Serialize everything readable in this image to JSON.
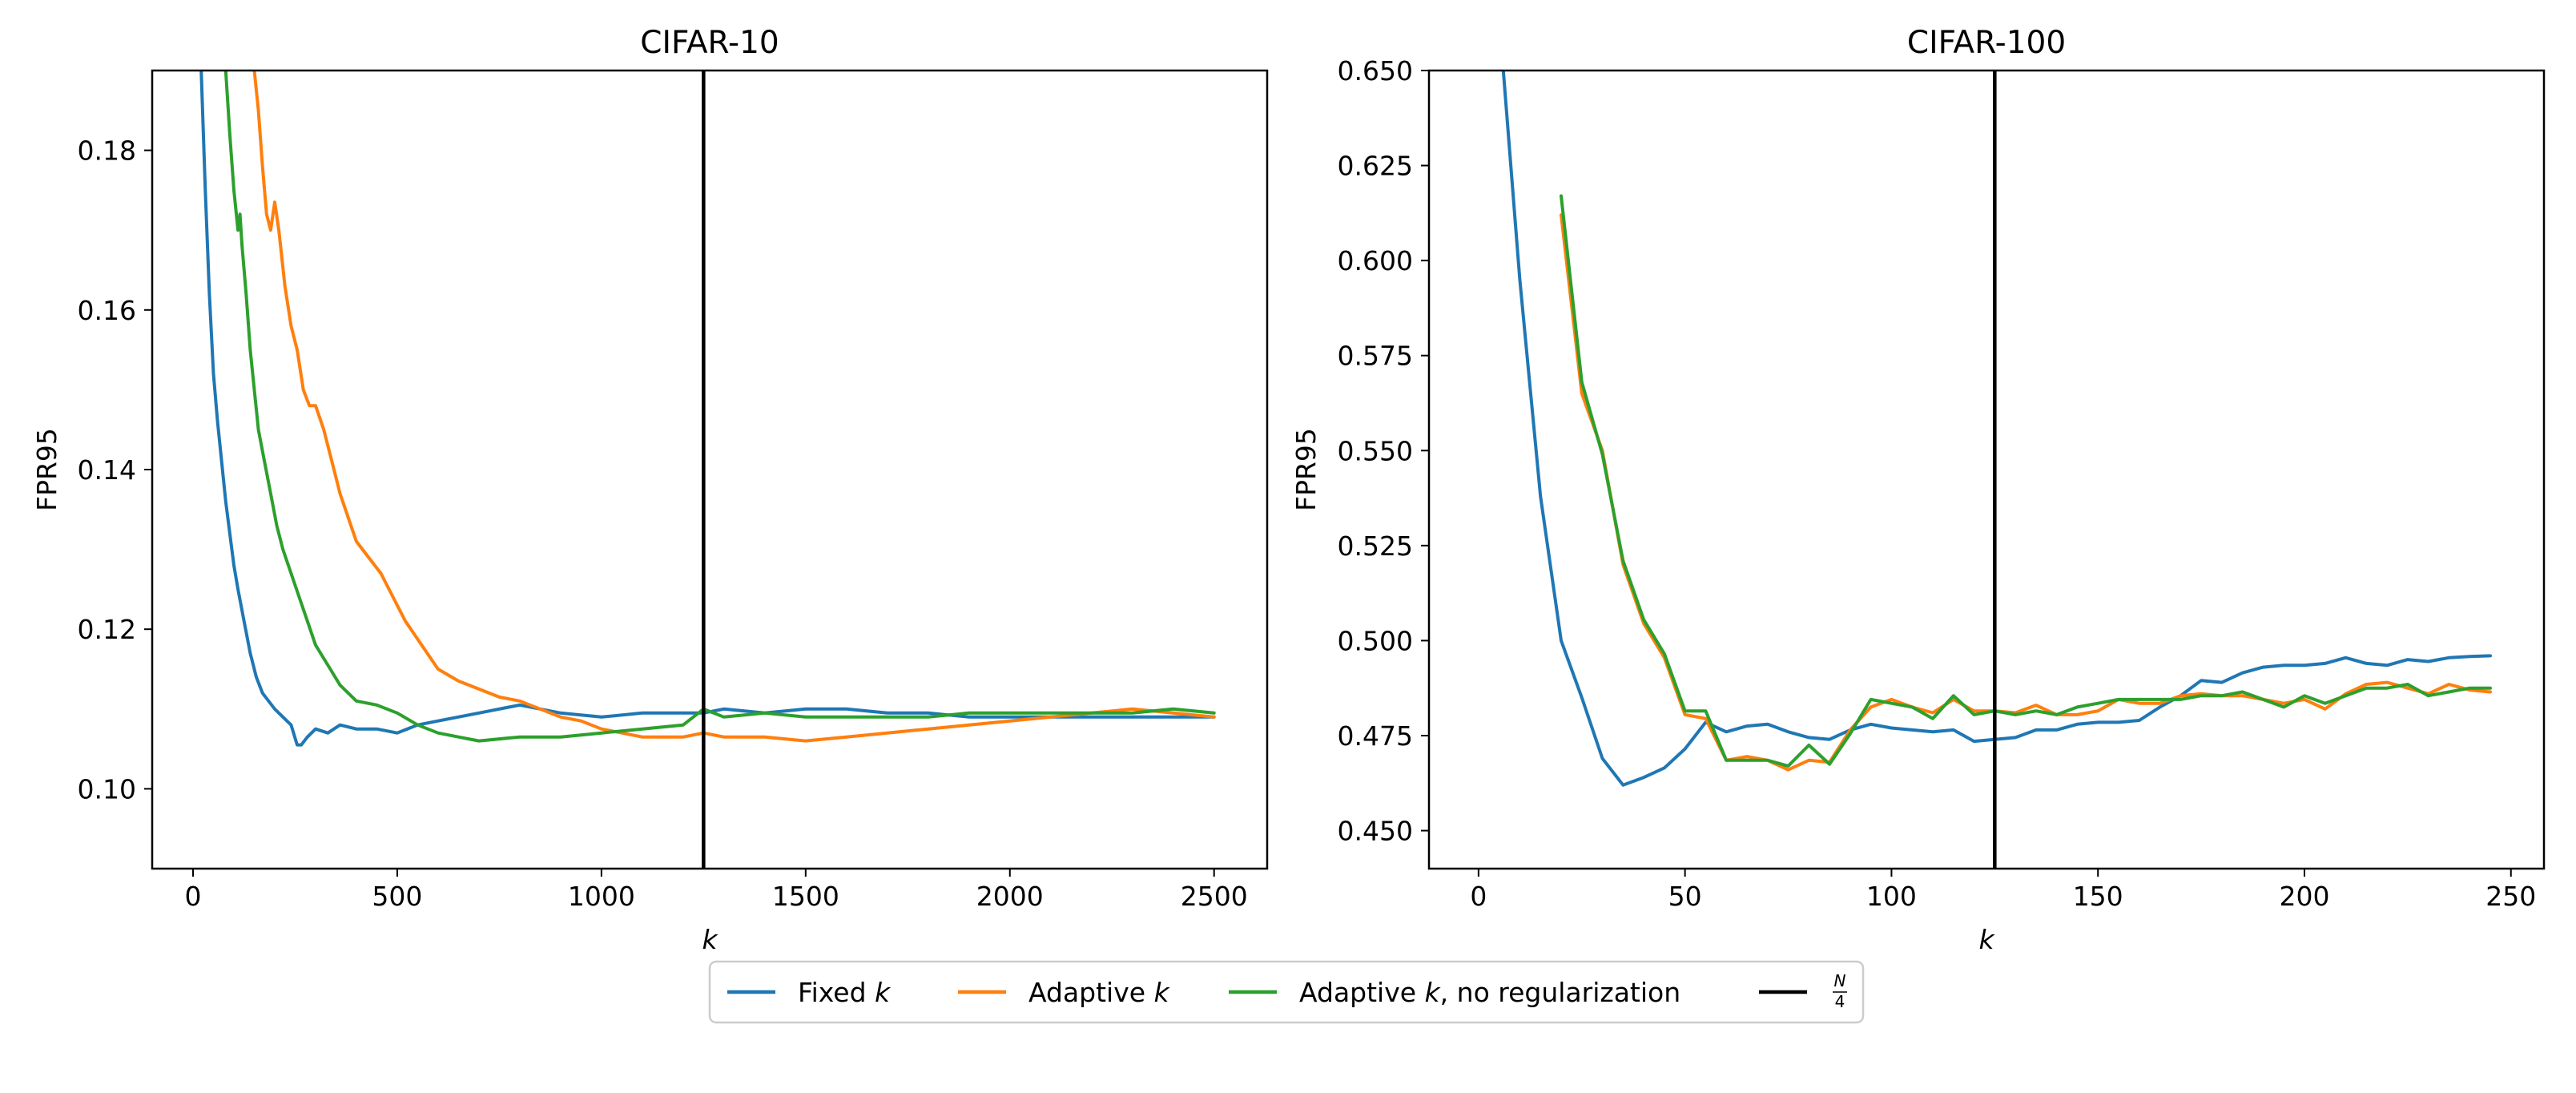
{
  "chart_data": [
    {
      "type": "line",
      "title": "CIFAR-10",
      "xlabel": "k",
      "ylabel": "FPR95",
      "xlim": [
        -100,
        2630
      ],
      "ylim": [
        0.09,
        0.19
      ],
      "xticks": [
        0,
        500,
        1000,
        1500,
        2000,
        2500
      ],
      "yticks": [
        0.1,
        0.12,
        0.14,
        0.16,
        0.18
      ],
      "xtick_labels": [
        "0",
        "500",
        "1000",
        "1500",
        "2000",
        "2500"
      ],
      "ytick_labels": [
        "0.10",
        "0.12",
        "0.14",
        "0.16",
        "0.18"
      ],
      "vline": 1250,
      "grid": false,
      "series": [
        {
          "name": "Fixed k",
          "color": "#1f77b4",
          "x": [
            20,
            30,
            40,
            50,
            60,
            70,
            80,
            90,
            100,
            110,
            125,
            140,
            155,
            170,
            185,
            200,
            220,
            240,
            255,
            265,
            280,
            300,
            330,
            360,
            400,
            450,
            500,
            550,
            600,
            700,
            800,
            900,
            1000,
            1100,
            1200,
            1250,
            1300,
            1400,
            1500,
            1600,
            1700,
            1800,
            1900,
            2000,
            2100,
            2200,
            2300,
            2400,
            2500
          ],
          "y": [
            0.19,
            0.175,
            0.162,
            0.152,
            0.146,
            0.141,
            0.136,
            0.132,
            0.128,
            0.125,
            0.121,
            0.117,
            0.114,
            0.112,
            0.111,
            0.11,
            0.109,
            0.108,
            0.1055,
            0.1055,
            0.1065,
            0.1075,
            0.107,
            0.108,
            0.1075,
            0.1075,
            0.107,
            0.108,
            0.1085,
            0.1095,
            0.1105,
            0.1095,
            0.109,
            0.1095,
            0.1095,
            0.1095,
            0.11,
            0.1095,
            0.11,
            0.11,
            0.1095,
            0.1095,
            0.109,
            0.109,
            0.109,
            0.109,
            0.109,
            0.109,
            0.109
          ]
        },
        {
          "name": "Adaptive k",
          "color": "#ff7f0e",
          "x": [
            150,
            160,
            170,
            180,
            190,
            200,
            210,
            225,
            240,
            255,
            270,
            285,
            300,
            320,
            340,
            360,
            380,
            400,
            430,
            460,
            490,
            520,
            560,
            600,
            650,
            700,
            750,
            800,
            850,
            900,
            950,
            1000,
            1050,
            1100,
            1150,
            1200,
            1250,
            1300,
            1400,
            1500,
            1600,
            1700,
            1800,
            1900,
            2000,
            2100,
            2200,
            2300,
            2400,
            2500
          ],
          "y": [
            0.19,
            0.185,
            0.178,
            0.172,
            0.17,
            0.1735,
            0.17,
            0.163,
            0.158,
            0.155,
            0.15,
            0.148,
            0.148,
            0.145,
            0.141,
            0.137,
            0.134,
            0.131,
            0.129,
            0.127,
            0.124,
            0.121,
            0.118,
            0.115,
            0.1135,
            0.1125,
            0.1115,
            0.111,
            0.11,
            0.109,
            0.1085,
            0.1075,
            0.107,
            0.1065,
            0.1065,
            0.1065,
            0.107,
            0.1065,
            0.1065,
            0.106,
            0.1065,
            0.107,
            0.1075,
            0.108,
            0.1085,
            0.109,
            0.1095,
            0.11,
            0.1095,
            0.109
          ]
        },
        {
          "name": "Adaptive k, no regularization",
          "color": "#2ca02c",
          "x": [
            80,
            90,
            100,
            110,
            115,
            120,
            130,
            140,
            150,
            160,
            175,
            190,
            205,
            220,
            240,
            260,
            280,
            300,
            330,
            360,
            400,
            450,
            500,
            550,
            600,
            650,
            700,
            800,
            900,
            1000,
            1100,
            1200,
            1250,
            1300,
            1400,
            1500,
            1600,
            1700,
            1800,
            1900,
            2000,
            2100,
            2200,
            2300,
            2400,
            2500
          ],
          "y": [
            0.19,
            0.182,
            0.175,
            0.17,
            0.172,
            0.168,
            0.162,
            0.155,
            0.15,
            0.145,
            0.141,
            0.137,
            0.133,
            0.13,
            0.127,
            0.124,
            0.121,
            0.118,
            0.1155,
            0.113,
            0.111,
            0.1105,
            0.1095,
            0.108,
            0.107,
            0.1065,
            0.106,
            0.1065,
            0.1065,
            0.107,
            0.1075,
            0.108,
            0.11,
            0.109,
            0.1095,
            0.109,
            0.109,
            0.109,
            0.109,
            0.1095,
            0.1095,
            0.1095,
            0.1095,
            0.1095,
            0.11,
            0.1095
          ]
        }
      ]
    },
    {
      "type": "line",
      "title": "CIFAR-100",
      "xlabel": "k",
      "ylabel": "FPR95",
      "xlim": [
        -12,
        258
      ],
      "ylim": [
        0.44,
        0.65
      ],
      "xticks": [
        0,
        50,
        100,
        150,
        200,
        250
      ],
      "yticks": [
        0.45,
        0.475,
        0.5,
        0.525,
        0.55,
        0.575,
        0.6,
        0.625,
        0.65
      ],
      "xtick_labels": [
        "0",
        "50",
        "100",
        "150",
        "200",
        "250"
      ],
      "ytick_labels": [
        "0.450",
        "0.475",
        "0.500",
        "0.525",
        "0.550",
        "0.575",
        "0.600",
        "0.625",
        "0.650"
      ],
      "vline": 125,
      "grid": false,
      "series": [
        {
          "name": "Fixed k",
          "color": "#1f77b4",
          "x": [
            6,
            10,
            15,
            20,
            25,
            30,
            35,
            40,
            45,
            50,
            55,
            60,
            65,
            70,
            75,
            80,
            85,
            90,
            95,
            100,
            105,
            110,
            115,
            120,
            125,
            130,
            135,
            140,
            145,
            150,
            155,
            160,
            165,
            170,
            175,
            180,
            185,
            190,
            195,
            200,
            205,
            210,
            215,
            220,
            225,
            230,
            235,
            240,
            245
          ],
          "y": [
            0.65,
            0.595,
            0.538,
            0.5,
            0.485,
            0.469,
            0.462,
            0.464,
            0.4665,
            0.4715,
            0.4785,
            0.476,
            0.4775,
            0.478,
            0.476,
            0.4745,
            0.474,
            0.4765,
            0.478,
            0.477,
            0.4765,
            0.476,
            0.4765,
            0.4735,
            0.474,
            0.4745,
            0.4765,
            0.4765,
            0.478,
            0.4785,
            0.4785,
            0.479,
            0.4825,
            0.4855,
            0.4895,
            0.489,
            0.4915,
            0.493,
            0.4935,
            0.4935,
            0.494,
            0.4955,
            0.494,
            0.4935,
            0.495,
            0.4945,
            0.4955,
            0.4958,
            0.496
          ]
        },
        {
          "name": "Adaptive k",
          "color": "#ff7f0e",
          "x": [
            20,
            25,
            30,
            35,
            40,
            45,
            50,
            55,
            60,
            65,
            70,
            75,
            80,
            85,
            90,
            95,
            100,
            105,
            110,
            115,
            120,
            125,
            130,
            135,
            140,
            145,
            150,
            155,
            160,
            165,
            170,
            175,
            180,
            185,
            190,
            195,
            200,
            205,
            210,
            215,
            220,
            225,
            230,
            235,
            240,
            245
          ],
          "y": [
            0.612,
            0.565,
            0.55,
            0.52,
            0.5045,
            0.4955,
            0.4805,
            0.4795,
            0.4685,
            0.4695,
            0.4685,
            0.466,
            0.4685,
            0.468,
            0.4765,
            0.4825,
            0.4845,
            0.4825,
            0.481,
            0.4845,
            0.4815,
            0.4815,
            0.481,
            0.483,
            0.4805,
            0.4805,
            0.4815,
            0.4845,
            0.4835,
            0.4835,
            0.4855,
            0.486,
            0.4855,
            0.4855,
            0.4845,
            0.4835,
            0.4845,
            0.482,
            0.486,
            0.4885,
            0.489,
            0.4875,
            0.486,
            0.4885,
            0.487,
            0.4865
          ]
        },
        {
          "name": "Adaptive k, no regularization",
          "color": "#2ca02c",
          "x": [
            20,
            25,
            30,
            35,
            40,
            45,
            50,
            55,
            60,
            65,
            70,
            75,
            80,
            85,
            90,
            95,
            100,
            105,
            110,
            115,
            120,
            125,
            130,
            135,
            140,
            145,
            150,
            155,
            160,
            165,
            170,
            175,
            180,
            185,
            190,
            195,
            200,
            205,
            210,
            215,
            220,
            225,
            230,
            235,
            240,
            245
          ],
          "y": [
            0.617,
            0.568,
            0.549,
            0.521,
            0.5055,
            0.4965,
            0.4815,
            0.4815,
            0.4685,
            0.4685,
            0.4685,
            0.467,
            0.4725,
            0.4675,
            0.4755,
            0.4845,
            0.4835,
            0.4825,
            0.4795,
            0.4855,
            0.4805,
            0.4815,
            0.4805,
            0.4815,
            0.4805,
            0.4825,
            0.4835,
            0.4845,
            0.4845,
            0.4845,
            0.4845,
            0.4855,
            0.4855,
            0.4865,
            0.4845,
            0.4825,
            0.4855,
            0.4835,
            0.4855,
            0.4875,
            0.4875,
            0.4885,
            0.4855,
            0.4865,
            0.4875,
            0.4875
          ]
        }
      ]
    }
  ],
  "legend": {
    "placement": "bottom-center",
    "entries": [
      {
        "label": "Fixed ",
        "italic": "k",
        "rest": "",
        "color": "#1f77b4"
      },
      {
        "label": "Adaptive ",
        "italic": "k",
        "rest": "",
        "color": "#ff7f0e"
      },
      {
        "label": "Adaptive ",
        "italic": "k",
        "rest": ", no regularization",
        "color": "#2ca02c"
      },
      {
        "label": "",
        "italic": "",
        "rest": "",
        "fraction_num": "N",
        "fraction_den": "4",
        "color": "#000000"
      }
    ]
  }
}
